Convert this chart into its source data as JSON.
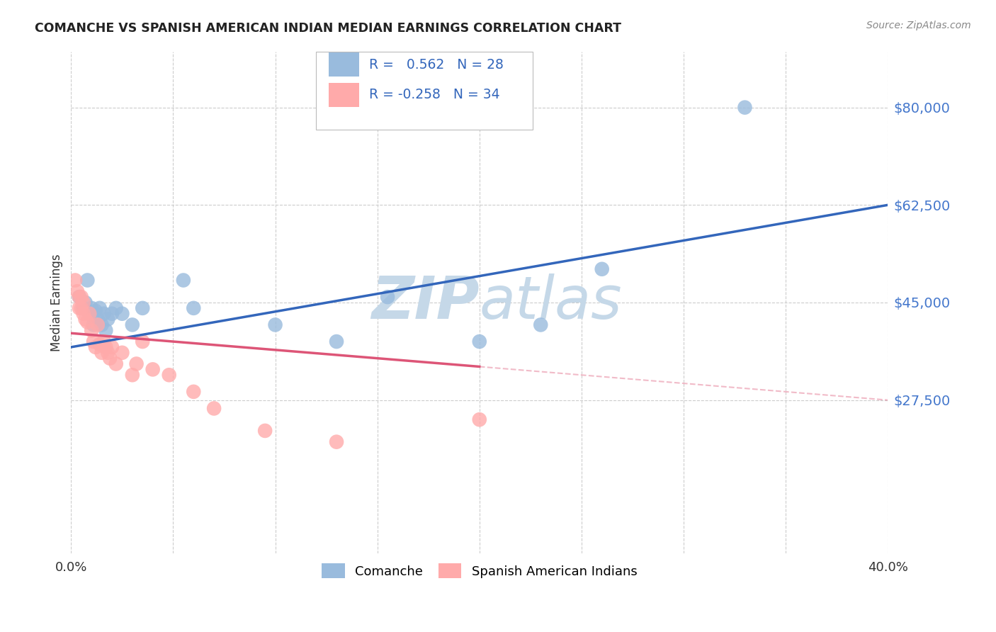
{
  "title": "COMANCHE VS SPANISH AMERICAN INDIAN MEDIAN EARNINGS CORRELATION CHART",
  "source": "Source: ZipAtlas.com",
  "ylabel": "Median Earnings",
  "comanche_R": 0.562,
  "comanche_N": 28,
  "spanish_R": -0.258,
  "spanish_N": 34,
  "comanche_color": "#99BBDD",
  "spanish_color": "#FFAAAA",
  "trendline_blue": "#3366BB",
  "trendline_pink": "#DD5577",
  "watermark_color": "#D0E4F0",
  "background_color": "#FFFFFF",
  "grid_color": "#CCCCCC",
  "xlim": [
    0.0,
    0.4
  ],
  "ylim": [
    0,
    90000
  ],
  "ytick_vals": [
    27500,
    45000,
    62500,
    80000
  ],
  "ytick_labels": [
    "$27,500",
    "$45,000",
    "$62,500",
    "$80,000"
  ],
  "blue_line_y0": 37000,
  "blue_line_y1": 62500,
  "pink_line_y0": 39500,
  "pink_line_y1": 27500,
  "pink_solid_xend": 0.2,
  "comanche_x": [
    0.004,
    0.006,
    0.007,
    0.008,
    0.009,
    0.01,
    0.011,
    0.012,
    0.013,
    0.014,
    0.015,
    0.016,
    0.017,
    0.018,
    0.02,
    0.022,
    0.025,
    0.03,
    0.035,
    0.055,
    0.06,
    0.1,
    0.13,
    0.155,
    0.2,
    0.23,
    0.26,
    0.33
  ],
  "comanche_y": [
    46000,
    44000,
    45000,
    49000,
    43000,
    44000,
    41000,
    43500,
    42000,
    44000,
    41000,
    43000,
    40000,
    42000,
    43000,
    44000,
    43000,
    41000,
    44000,
    49000,
    44000,
    41000,
    38000,
    46000,
    38000,
    41000,
    51000,
    80000
  ],
  "spanish_x": [
    0.002,
    0.003,
    0.004,
    0.004,
    0.005,
    0.005,
    0.006,
    0.006,
    0.007,
    0.008,
    0.009,
    0.01,
    0.011,
    0.012,
    0.013,
    0.014,
    0.015,
    0.016,
    0.017,
    0.018,
    0.019,
    0.02,
    0.022,
    0.025,
    0.03,
    0.032,
    0.035,
    0.04,
    0.048,
    0.06,
    0.07,
    0.095,
    0.13,
    0.2
  ],
  "spanish_y": [
    49000,
    47000,
    46000,
    44000,
    44000,
    46000,
    45000,
    43000,
    42000,
    41500,
    43000,
    40000,
    38000,
    37000,
    41000,
    37500,
    36000,
    38000,
    37000,
    36000,
    35000,
    37000,
    34000,
    36000,
    32000,
    34000,
    38000,
    33000,
    32000,
    29000,
    26000,
    22000,
    20000,
    24000
  ]
}
